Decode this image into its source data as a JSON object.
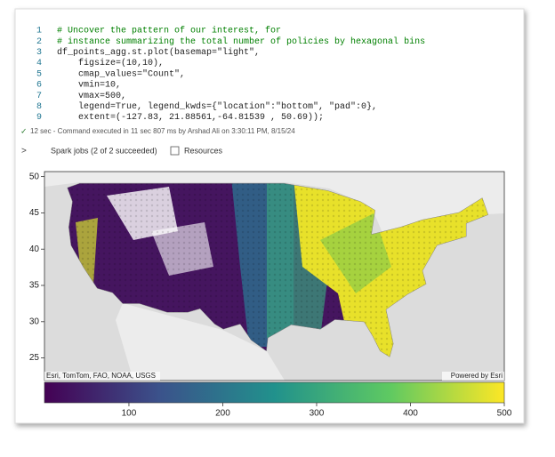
{
  "code": {
    "line_numbers": [
      1,
      2,
      3,
      4,
      5,
      6,
      7,
      8,
      9
    ],
    "lines": [
      "# Uncover the pattern of our interest, for",
      "# instance summarizing the total number of policies by hexagonal bins",
      "df_points_agg.st.plot(basemap=\"light\",",
      "    figsize=(10,10),",
      "    cmap_values=\"Count\",",
      "    vmin=10,",
      "    vmax=500,",
      "    legend=True, legend_kwds={\"location\":\"bottom\", \"pad\":0},",
      "    extent=(-127.83, 21.88561,-64.81539 , 50.69));"
    ]
  },
  "status": {
    "text": "12 sec - Command executed in 11 sec 807 ms by Arshad Ali on 3:30:11 PM, 8/15/24"
  },
  "toolbar": {
    "spark_jobs": "Spark jobs (2 of 2 succeeded)",
    "resources": "Resources"
  },
  "map": {
    "ylim": [
      21.88561,
      50.69
    ],
    "yticks": [
      25,
      30,
      35,
      40,
      45,
      50
    ],
    "attribution_left": "Esri, TomTom, FAO, NOAA, USGS",
    "attribution_right": "Powered by Esri",
    "colorbar": {
      "lim": [
        10,
        500
      ],
      "ticks": [
        100,
        200,
        300,
        400,
        500
      ]
    }
  }
}
